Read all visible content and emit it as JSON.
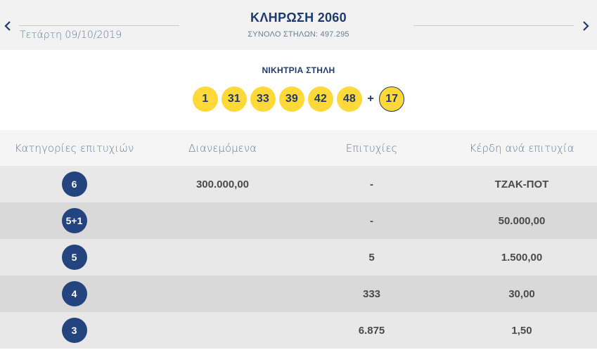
{
  "header": {
    "date": "Τετάρτη 09/10/2019",
    "draw_title": "ΚΛΗΡΩΣΗ 2060",
    "total_columns": "ΣΥΝΟΛΟ ΣΤΗΛΩΝ: 497.295"
  },
  "winning": {
    "title": "ΝΙΚΗΤΡΙΑ ΣΤΗΛΗ",
    "numbers": [
      "1",
      "31",
      "33",
      "39",
      "42",
      "48"
    ],
    "plus": "+",
    "bonus": "17"
  },
  "table": {
    "headers": [
      "Κατηγορίες επιτυχιών",
      "Διανεμόμενα",
      "Επιτυχίες",
      "Κέρδη ανά επιτυχία"
    ],
    "rows": [
      {
        "category": "6",
        "distributed": "300.000,00",
        "winners": "-",
        "prize": "ΤΖΑΚ-ΠΟΤ"
      },
      {
        "category": "5+1",
        "distributed": "",
        "winners": "-",
        "prize": "50.000,00"
      },
      {
        "category": "5",
        "distributed": "",
        "winners": "5",
        "prize": "1.500,00"
      },
      {
        "category": "4",
        "distributed": "",
        "winners": "333",
        "prize": "30,00"
      },
      {
        "category": "3",
        "distributed": "",
        "winners": "6.875",
        "prize": "1,50"
      }
    ]
  },
  "colors": {
    "navy": "#1f3a6e",
    "ball_yellow": "#ffd83a",
    "badge_blue": "#23447e"
  },
  "icons": {
    "prev": "chevron-left-icon",
    "next": "chevron-right-icon"
  }
}
